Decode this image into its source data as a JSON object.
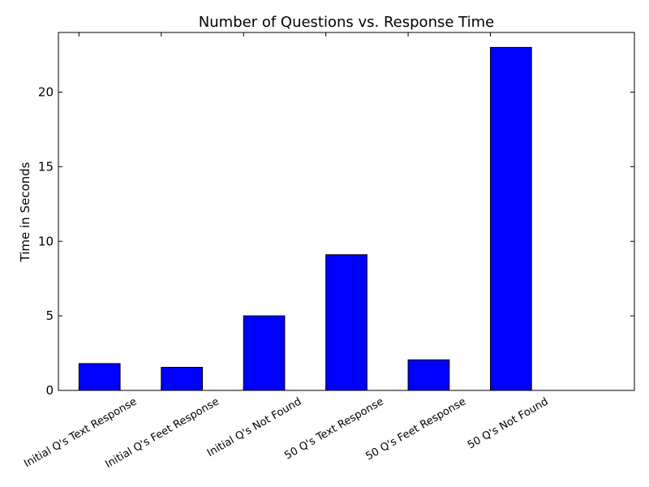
{
  "chart_data": {
    "type": "bar",
    "title": "Number of Questions vs. Response Time",
    "xlabel": "",
    "ylabel": "Time in Seconds",
    "categories": [
      "Initial Q's Text Response",
      "Initial Q's Feet Response",
      "Initial Q's Not Found",
      "50 Q's Text Response",
      "50 Q's Feet Response",
      "50 Q's Not Found"
    ],
    "values": [
      1.8,
      1.55,
      5.0,
      9.1,
      2.05,
      23.0
    ],
    "ylim": [
      0,
      24
    ],
    "yticks": [
      0,
      5,
      10,
      15,
      20
    ],
    "grid": false,
    "bar_color": "#0000ff",
    "edge_color": "#000000"
  }
}
